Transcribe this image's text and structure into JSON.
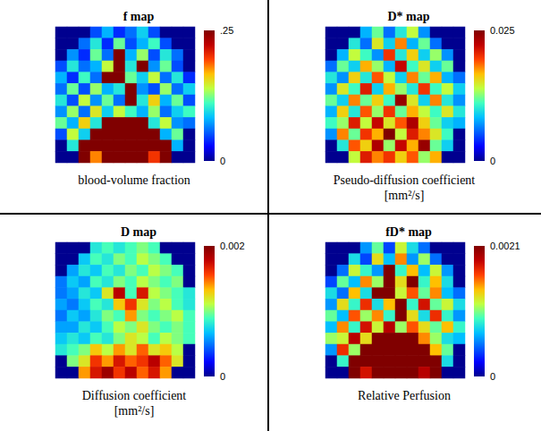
{
  "chart_data": [
    {
      "type": "heatmap",
      "title": "f map",
      "caption": [
        "blood-volume fraction"
      ],
      "tick_labels": false,
      "colorbar": {
        "range": [
          0,
          0.25
        ],
        "ticks": [
          0,
          {
            "value": 0.25,
            "label": ".25"
          }
        ]
      },
      "cells": [
        [
          0,
          0,
          0,
          0.05,
          0.08,
          0.04,
          0.06,
          0.09,
          0.05,
          0,
          0,
          0
        ],
        [
          0,
          0,
          0.06,
          0.1,
          0.04,
          0.12,
          0.05,
          0.08,
          0.11,
          0.05,
          0,
          0
        ],
        [
          0,
          0.07,
          0.04,
          0.12,
          0.06,
          0.25,
          0.08,
          0.13,
          0.05,
          0.1,
          0.06,
          0
        ],
        [
          0.05,
          0.1,
          0.06,
          0.08,
          0.14,
          0.25,
          0.1,
          0.25,
          0.07,
          0.12,
          0.05,
          0
        ],
        [
          0.08,
          0.04,
          0.11,
          0.06,
          0.25,
          0.25,
          0.12,
          0.09,
          0.14,
          0.06,
          0.1,
          0.04
        ],
        [
          0.06,
          0.12,
          0.05,
          0.13,
          0.08,
          0.1,
          0.25,
          0.07,
          0.05,
          0.13,
          0.06,
          0.09
        ],
        [
          0.1,
          0.05,
          0.14,
          0.07,
          0.12,
          0.06,
          0.25,
          0.1,
          0.16,
          0.08,
          0.12,
          0.05
        ],
        [
          0.07,
          0.13,
          0.06,
          0.15,
          0.09,
          0.14,
          0.11,
          0.08,
          0.13,
          0.06,
          0.09,
          0.11
        ],
        [
          0.12,
          0.08,
          0.16,
          0.1,
          0.25,
          0.25,
          0.25,
          0.25,
          0.1,
          0.14,
          0.07,
          0.06
        ],
        [
          0.05,
          0.14,
          0.09,
          0.25,
          0.25,
          0.25,
          0.25,
          0.25,
          0.25,
          0.08,
          0.12,
          0
        ],
        [
          0,
          0.1,
          0.25,
          0.25,
          0.25,
          0.25,
          0.25,
          0.25,
          0.25,
          0.25,
          0.08,
          0
        ],
        [
          0,
          0,
          0.25,
          0.18,
          0.25,
          0.25,
          0.25,
          0.25,
          0.2,
          0.25,
          0,
          0
        ]
      ]
    },
    {
      "type": "heatmap",
      "title": "D* map",
      "caption": [
        "Pseudo-diffusion coefficient",
        "[mm²/s]"
      ],
      "tick_labels": false,
      "colorbar": {
        "range": [
          0,
          0.025
        ],
        "ticks": [
          0,
          0.025
        ]
      },
      "cells": [
        [
          0,
          0,
          0,
          0.008,
          0.012,
          0.006,
          0.01,
          0.014,
          0.007,
          0,
          0,
          0
        ],
        [
          0,
          0,
          0.01,
          0.006,
          0.015,
          0.009,
          0.018,
          0.008,
          0.012,
          0.006,
          0,
          0
        ],
        [
          0,
          0.008,
          0.014,
          0.011,
          0.007,
          0.02,
          0.01,
          0.016,
          0.009,
          0.013,
          0.007,
          0
        ],
        [
          0.006,
          0.012,
          0.009,
          0.017,
          0.013,
          0.008,
          0.022,
          0.011,
          0.015,
          0.009,
          0.012,
          0
        ],
        [
          0.01,
          0.007,
          0.016,
          0.01,
          0.019,
          0.014,
          0.009,
          0.018,
          0.012,
          0.017,
          0.008,
          0.006
        ],
        [
          0.007,
          0.015,
          0.011,
          0.021,
          0.009,
          0.017,
          0.013,
          0.01,
          0.02,
          0.011,
          0.014,
          0.009
        ],
        [
          0.012,
          0.009,
          0.018,
          0.012,
          0.016,
          0.011,
          0.024,
          0.015,
          0.009,
          0.018,
          0.01,
          0.007
        ],
        [
          0.008,
          0.016,
          0.01,
          0.019,
          0.013,
          0.02,
          0.012,
          0.017,
          0.014,
          0.011,
          0.015,
          0.01
        ],
        [
          0.011,
          0.013,
          0.021,
          0.014,
          0.022,
          0.015,
          0.019,
          0.023,
          0.016,
          0.012,
          0.009,
          0.008
        ],
        [
          0.007,
          0.018,
          0.012,
          0.02,
          0.017,
          0.025,
          0.014,
          0.021,
          0.018,
          0.015,
          0.011,
          0
        ],
        [
          0,
          0.01,
          0.019,
          0.016,
          0.023,
          0.013,
          0.022,
          0.017,
          0.024,
          0.012,
          0.009,
          0
        ],
        [
          0,
          0,
          0.014,
          0.021,
          0.018,
          0.02,
          0.016,
          0.019,
          0.013,
          0.017,
          0,
          0
        ]
      ]
    },
    {
      "type": "heatmap",
      "title": "D map",
      "caption": [
        "Diffusion coefficient",
        "[mm²/s]"
      ],
      "tick_labels": false,
      "colorbar": {
        "range": [
          0,
          0.002
        ],
        "ticks": [
          0,
          0.002
        ]
      },
      "cells": [
        [
          0,
          0,
          0,
          0.0008,
          0.0009,
          0.0008,
          0.0009,
          0.001,
          0.0009,
          0,
          0,
          0
        ],
        [
          0,
          0,
          0.0007,
          0.0009,
          0.0008,
          0.001,
          0.0009,
          0.0011,
          0.001,
          0.0009,
          0,
          0
        ],
        [
          0,
          0.0006,
          0.0008,
          0.0007,
          0.0009,
          0.0008,
          0.001,
          0.0009,
          0.0011,
          0.001,
          0.0009,
          0
        ],
        [
          0.0005,
          0.0007,
          0.0006,
          0.0009,
          0.0008,
          0.001,
          0.0009,
          0.0011,
          0.001,
          0.0009,
          0.001,
          0
        ],
        [
          0.0005,
          0.0006,
          0.0008,
          0.0007,
          0.0012,
          0.0018,
          0.0009,
          0.0017,
          0.0011,
          0.001,
          0.0009,
          0.0008
        ],
        [
          0.0006,
          0.0005,
          0.0007,
          0.0009,
          0.0008,
          0.0013,
          0.0016,
          0.0012,
          0.001,
          0.0011,
          0.0009,
          0.0008
        ],
        [
          0.0005,
          0.0007,
          0.0006,
          0.0008,
          0.001,
          0.0009,
          0.0014,
          0.001,
          0.0009,
          0.001,
          0.0011,
          0.0009
        ],
        [
          0.0006,
          0.0006,
          0.0008,
          0.0007,
          0.0009,
          0.0011,
          0.001,
          0.0012,
          0.001,
          0.0009,
          0.001,
          0.0009
        ],
        [
          0.0007,
          0.0008,
          0.0007,
          0.0009,
          0.0008,
          0.001,
          0.0012,
          0.0011,
          0.0009,
          0.0011,
          0.001,
          0.0009
        ],
        [
          0.0008,
          0.0009,
          0.001,
          0.0013,
          0.0011,
          0.0014,
          0.0012,
          0.0015,
          0.0012,
          0.0013,
          0.0011,
          0
        ],
        [
          0,
          0.001,
          0.0012,
          0.0016,
          0.0014,
          0.0017,
          0.0015,
          0.0016,
          0.0018,
          0.0015,
          0.0012,
          0
        ],
        [
          0,
          0,
          0.0014,
          0.0017,
          0.0019,
          0.0016,
          0.0018,
          0.0015,
          0.0017,
          0.0014,
          0,
          0
        ]
      ]
    },
    {
      "type": "heatmap",
      "title": "fD* map",
      "caption": [
        "Relative Perfusion"
      ],
      "tick_labels": false,
      "colorbar": {
        "range": [
          0,
          0.0021
        ],
        "ticks": [
          0,
          0.0021
        ]
      },
      "cells": [
        [
          0,
          0,
          0,
          0.0006,
          0.001,
          0.0004,
          0.0012,
          0.0008,
          0.0005,
          0,
          0,
          0
        ],
        [
          0,
          0,
          0.0008,
          0.0004,
          0.0013,
          0.0007,
          0.0015,
          0.0006,
          0.0011,
          0.0005,
          0,
          0
        ],
        [
          0,
          0.0005,
          0.0012,
          0.0009,
          0.0006,
          0.0021,
          0.0009,
          0.0014,
          0.0007,
          0.0012,
          0.0006,
          0
        ],
        [
          0.0004,
          0.001,
          0.0007,
          0.0015,
          0.0011,
          0.0021,
          0.0013,
          0.0021,
          0.0009,
          0.0014,
          0.0008,
          0
        ],
        [
          0.0008,
          0.0005,
          0.0014,
          0.0008,
          0.0021,
          0.0021,
          0.0012,
          0.0016,
          0.001,
          0.0015,
          0.0007,
          0.0005
        ],
        [
          0.0006,
          0.0013,
          0.0009,
          0.0017,
          0.0008,
          0.0014,
          0.0021,
          0.0009,
          0.0018,
          0.001,
          0.0012,
          0.0008
        ],
        [
          0.001,
          0.0007,
          0.0016,
          0.0011,
          0.0015,
          0.0009,
          0.0021,
          0.0013,
          0.0008,
          0.0017,
          0.0009,
          0.0006
        ],
        [
          0.0007,
          0.0015,
          0.0009,
          0.0018,
          0.0012,
          0.0019,
          0.0011,
          0.0016,
          0.0013,
          0.001,
          0.0014,
          0.0009
        ],
        [
          0.0011,
          0.0012,
          0.0019,
          0.0013,
          0.0021,
          0.0021,
          0.0021,
          0.0021,
          0.0015,
          0.0011,
          0.0008,
          0.0007
        ],
        [
          0.0006,
          0.0017,
          0.0011,
          0.0021,
          0.0021,
          0.0021,
          0.0021,
          0.0021,
          0.0021,
          0.0014,
          0.001,
          0
        ],
        [
          0,
          0.0009,
          0.0021,
          0.0021,
          0.0021,
          0.0021,
          0.0021,
          0.0021,
          0.0021,
          0.0021,
          0.0008,
          0
        ],
        [
          0,
          0,
          0.0021,
          0.0018,
          0.0021,
          0.0021,
          0.0021,
          0.0021,
          0.0019,
          0.0021,
          0,
          0
        ]
      ]
    }
  ]
}
